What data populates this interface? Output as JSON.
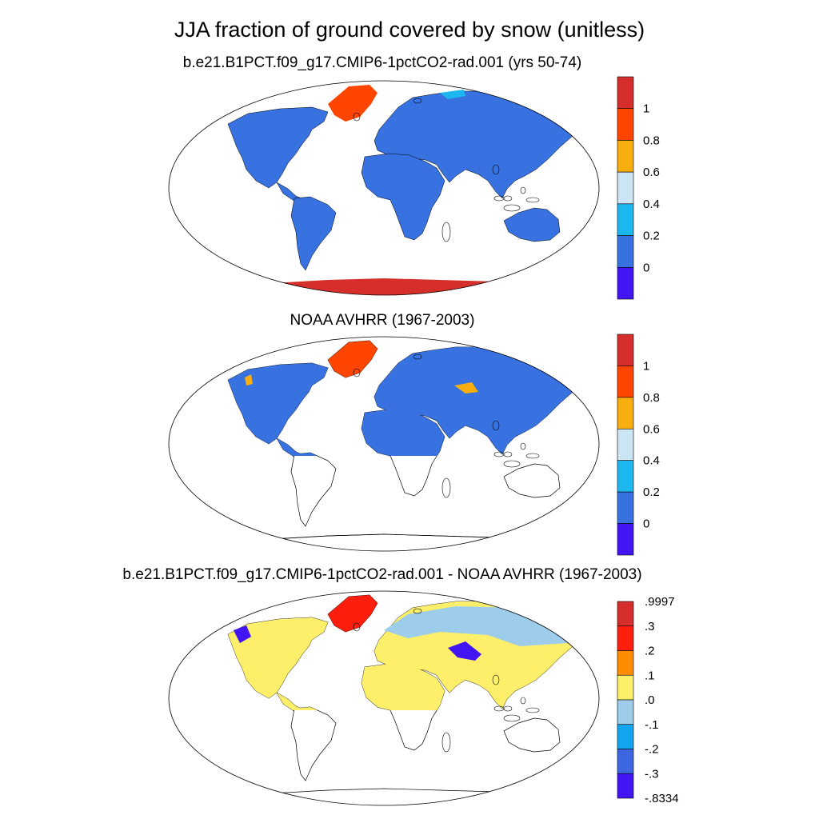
{
  "title": "JJA fraction of ground covered by snow (unitless)",
  "panels": [
    {
      "subtitle": "b.e21.B1PCT.f09_g17.CMIP6-1pctCO2-rad.001 (yrs 50-74)",
      "colorbar": {
        "colors": [
          "#d62f2b",
          "#ff4500",
          "#f8ae0e",
          "#cce5f4",
          "#1cb7ef",
          "#3872e0",
          "#4215f2"
        ],
        "labels": [
          "1",
          "0.8",
          "0.6",
          "0.4",
          "0.2",
          "0"
        ]
      }
    },
    {
      "subtitle": "NOAA AVHRR (1967-2003)",
      "colorbar": {
        "colors": [
          "#d62f2b",
          "#ff4500",
          "#f8ae0e",
          "#cce5f4",
          "#1cb7ef",
          "#3872e0",
          "#4215f2"
        ],
        "labels": [
          "1",
          "0.8",
          "0.6",
          "0.4",
          "0.2",
          "0"
        ]
      }
    },
    {
      "subtitle": "b.e21.B1PCT.f09_g17.CMIP6-1pctCO2-rad.001 - NOAA AVHRR (1967-2003)",
      "colorbar": {
        "colors": [
          "#d62f2b",
          "#fe1e0e",
          "#fe8d00",
          "#fdef6a",
          "#9dcdeb",
          "#14a5ef",
          "#3c67e0",
          "#4215f2"
        ],
        "labels": [
          ".9997",
          ".3",
          ".2",
          ".1",
          ".0",
          "-.1",
          "-.2",
          "-.3",
          "-.8334"
        ]
      }
    }
  ],
  "colors": {
    "land_model": "#3872e0",
    "antarctica": "#d62f2b",
    "greenland": "#ff4500",
    "diff_land": "#fdef6a",
    "diff_north": "#9dcdeb",
    "diff_deep": "#4215f2"
  }
}
